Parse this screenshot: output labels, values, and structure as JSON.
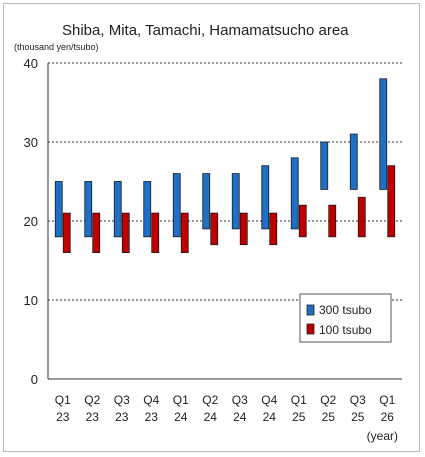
{
  "chart_data": {
    "type": "bar",
    "subtype": "floating-range",
    "title": "Shiba, Mita, Tamachi, Hamamatsucho area",
    "ylabel": "(thousand yen/tsubo)",
    "xlabel": "(year)",
    "ylim": [
      0,
      40
    ],
    "yticks": [
      0,
      10,
      20,
      30,
      40
    ],
    "grid": true,
    "legend_position": "bottom-right",
    "categories": [
      {
        "q": "Q1",
        "y": "23"
      },
      {
        "q": "Q2",
        "y": "23"
      },
      {
        "q": "Q3",
        "y": "23"
      },
      {
        "q": "Q4",
        "y": "23"
      },
      {
        "q": "Q1",
        "y": "24"
      },
      {
        "q": "Q2",
        "y": "24"
      },
      {
        "q": "Q3",
        "y": "24"
      },
      {
        "q": "Q4",
        "y": "24"
      },
      {
        "q": "Q1",
        "y": "25"
      },
      {
        "q": "Q2",
        "y": "25"
      },
      {
        "q": "Q3",
        "y": "25"
      },
      {
        "q": "Q1",
        "y": "26"
      }
    ],
    "series": [
      {
        "name": "300 tsubo",
        "color": "#1f6fc6",
        "low": [
          18,
          18,
          18,
          18,
          18,
          19,
          19,
          19,
          19,
          24,
          24,
          24
        ],
        "high": [
          25,
          25,
          25,
          25,
          26,
          26,
          26,
          27,
          28,
          30,
          31,
          38
        ]
      },
      {
        "name": "100 tsubo",
        "color": "#c00000",
        "low": [
          16,
          16,
          16,
          16,
          16,
          17,
          17,
          17,
          18,
          18,
          18,
          18
        ],
        "high": [
          21,
          21,
          21,
          21,
          21,
          21,
          21,
          21,
          22,
          22,
          23,
          27
        ]
      }
    ]
  }
}
